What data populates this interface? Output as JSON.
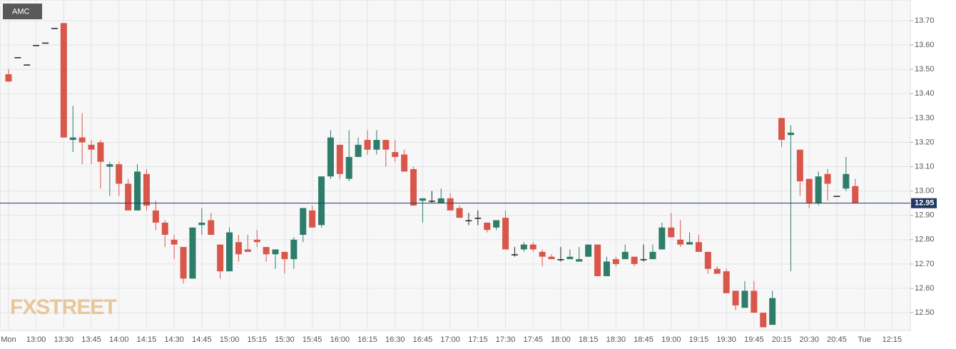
{
  "chart_data": {
    "type": "candlestick",
    "symbol": "AMC",
    "watermark": "FXSTREET",
    "up_color": "#2e7d6b",
    "down_color": "#d9574a",
    "doji_color": "#222222",
    "last_price_color": "#1f3864",
    "grid": true,
    "ylim": [
      12.427,
      13.785
    ],
    "yticks": [
      {
        "value": 12.5,
        "label": "12.50"
      },
      {
        "value": 12.6,
        "label": "12.60"
      },
      {
        "value": 12.7,
        "label": "12.70"
      },
      {
        "value": 12.8,
        "label": "12.80"
      },
      {
        "value": 12.9,
        "label": "12.90"
      },
      {
        "value": 13.0,
        "label": "13.00"
      },
      {
        "value": 13.1,
        "label": "13.10"
      },
      {
        "value": 13.2,
        "label": "13.20"
      },
      {
        "value": 13.3,
        "label": "13.30"
      },
      {
        "value": 13.4,
        "label": "13.40"
      },
      {
        "value": 13.5,
        "label": "13.50"
      },
      {
        "value": 13.6,
        "label": "13.60"
      },
      {
        "value": 13.7,
        "label": "13.70"
      }
    ],
    "last_price": {
      "value": 12.95,
      "label": "12.95"
    },
    "categories": [
      "Mon",
      null,
      null,
      "13:00",
      null,
      null,
      "13:30",
      null,
      null,
      "13:45",
      null,
      null,
      "14:00",
      null,
      null,
      "14:15",
      null,
      null,
      "14:30",
      null,
      null,
      "14:45",
      null,
      null,
      "15:00",
      null,
      null,
      "15:15",
      null,
      null,
      "15:30",
      null,
      null,
      "15:45",
      null,
      null,
      "16:00",
      null,
      null,
      "16:15",
      null,
      null,
      "16:30",
      null,
      null,
      "16:45",
      null,
      null,
      "17:00",
      null,
      null,
      "17:15",
      null,
      null,
      "17:30",
      null,
      null,
      "17:45",
      null,
      null,
      "18:00",
      null,
      null,
      "18:15",
      null,
      null,
      "18:30",
      null,
      null,
      "18:45",
      null,
      null,
      "19:00",
      null,
      null,
      "19:15",
      null,
      null,
      "19:30",
      null,
      null,
      "19:45",
      null,
      null,
      "20:15",
      null,
      null,
      "20:30",
      null,
      null,
      "20:45",
      null,
      null,
      "Tue",
      null,
      null,
      "12:15"
    ],
    "open": [
      13.48,
      13.55,
      13.52,
      13.6,
      13.61,
      13.67,
      13.69,
      13.21,
      13.22,
      13.19,
      13.2,
      13.1,
      13.11,
      13.03,
      12.92,
      13.07,
      12.92,
      12.87,
      12.8,
      12.77,
      12.64,
      12.86,
      12.88,
      12.78,
      12.67,
      12.79,
      12.76,
      12.8,
      12.77,
      12.74,
      12.75,
      12.72,
      12.82,
      12.92,
      12.86,
      13.06,
      13.19,
      13.05,
      13.14,
      13.21,
      13.17,
      13.21,
      13.16,
      13.15,
      13.09,
      12.96,
      12.96,
      12.95,
      12.97,
      12.93,
      12.88,
      12.89,
      12.87,
      12.85,
      12.89,
      12.74,
      12.76,
      12.78,
      12.75,
      12.73,
      12.72,
      12.72,
      12.71,
      12.73,
      12.78,
      12.65,
      12.72,
      12.72,
      12.73,
      12.72,
      12.72,
      12.76,
      12.85,
      12.8,
      12.78,
      12.79,
      12.75,
      12.68,
      12.67,
      12.59,
      12.52,
      12.59,
      12.5,
      12.45,
      13.3,
      13.23,
      13.17,
      13.05,
      12.95,
      13.07,
      12.98,
      13.01,
      13.02,
      null,
      null,
      null,
      null
    ],
    "high": [
      13.5,
      13.55,
      13.52,
      13.6,
      13.61,
      13.67,
      13.69,
      13.35,
      13.32,
      13.21,
      13.21,
      13.12,
      13.12,
      13.05,
      13.11,
      13.09,
      12.96,
      12.88,
      12.82,
      12.77,
      12.85,
      12.93,
      12.91,
      12.78,
      12.85,
      12.82,
      12.82,
      12.84,
      12.77,
      12.76,
      12.75,
      12.81,
      12.93,
      12.94,
      13.06,
      13.25,
      13.19,
      13.25,
      13.22,
      13.25,
      13.25,
      13.21,
      13.21,
      13.17,
      13.1,
      12.97,
      13.0,
      13.01,
      12.99,
      12.94,
      12.91,
      12.92,
      12.87,
      12.88,
      12.92,
      12.77,
      12.79,
      12.79,
      12.76,
      12.74,
      12.77,
      12.76,
      12.77,
      12.78,
      12.78,
      12.73,
      12.73,
      12.78,
      12.73,
      12.78,
      12.78,
      12.87,
      12.91,
      12.88,
      12.83,
      12.82,
      12.75,
      12.69,
      12.68,
      12.59,
      12.63,
      12.63,
      12.5,
      12.59,
      13.3,
      13.27,
      13.17,
      13.05,
      13.08,
      13.09,
      12.98,
      13.14,
      13.05,
      null,
      null,
      null,
      null
    ],
    "low": [
      13.45,
      13.55,
      13.52,
      13.6,
      13.61,
      13.67,
      13.22,
      13.16,
      13.11,
      13.11,
      13.01,
      12.98,
      12.98,
      12.92,
      12.92,
      12.92,
      12.84,
      12.77,
      12.72,
      12.62,
      12.64,
      12.82,
      12.82,
      12.64,
      12.67,
      12.71,
      12.75,
      12.77,
      12.71,
      12.68,
      12.66,
      12.68,
      12.79,
      12.85,
      12.85,
      13.05,
      13.05,
      13.04,
      13.14,
      13.15,
      13.15,
      13.1,
      13.12,
      13.08,
      12.94,
      12.87,
      12.95,
      12.95,
      12.92,
      12.89,
      12.86,
      12.86,
      12.83,
      12.84,
      12.76,
      12.73,
      12.75,
      12.75,
      12.69,
      12.72,
      12.71,
      12.72,
      12.71,
      12.73,
      12.65,
      12.65,
      12.69,
      12.72,
      12.69,
      12.71,
      12.72,
      12.76,
      12.81,
      12.77,
      12.78,
      12.75,
      12.66,
      12.66,
      12.58,
      12.51,
      12.52,
      12.5,
      12.44,
      12.45,
      13.18,
      12.67,
      12.98,
      12.93,
      12.94,
      12.96,
      12.98,
      13.0,
      12.95,
      null,
      null,
      null,
      null
    ],
    "close": [
      13.45,
      13.55,
      13.52,
      13.6,
      13.61,
      13.67,
      13.22,
      13.22,
      13.2,
      13.17,
      13.12,
      13.11,
      13.03,
      12.92,
      13.08,
      12.94,
      12.87,
      12.82,
      12.78,
      12.64,
      12.85,
      12.87,
      12.82,
      12.67,
      12.83,
      12.74,
      12.75,
      12.79,
      12.74,
      12.76,
      12.72,
      12.8,
      12.93,
      12.85,
      13.06,
      13.22,
      13.07,
      13.14,
      13.19,
      13.17,
      13.21,
      13.17,
      13.14,
      13.08,
      12.94,
      12.97,
      12.96,
      12.97,
      12.92,
      12.89,
      12.88,
      12.89,
      12.84,
      12.88,
      12.76,
      12.74,
      12.78,
      12.76,
      12.73,
      12.72,
      12.72,
      12.73,
      12.72,
      12.78,
      12.65,
      12.71,
      12.7,
      12.75,
      12.7,
      12.72,
      12.75,
      12.85,
      12.81,
      12.78,
      12.79,
      12.75,
      12.68,
      12.66,
      12.58,
      12.53,
      12.59,
      12.5,
      12.44,
      12.56,
      13.21,
      13.24,
      13.04,
      12.95,
      13.06,
      13.03,
      12.98,
      13.07,
      12.95,
      null,
      null,
      null,
      null
    ]
  }
}
